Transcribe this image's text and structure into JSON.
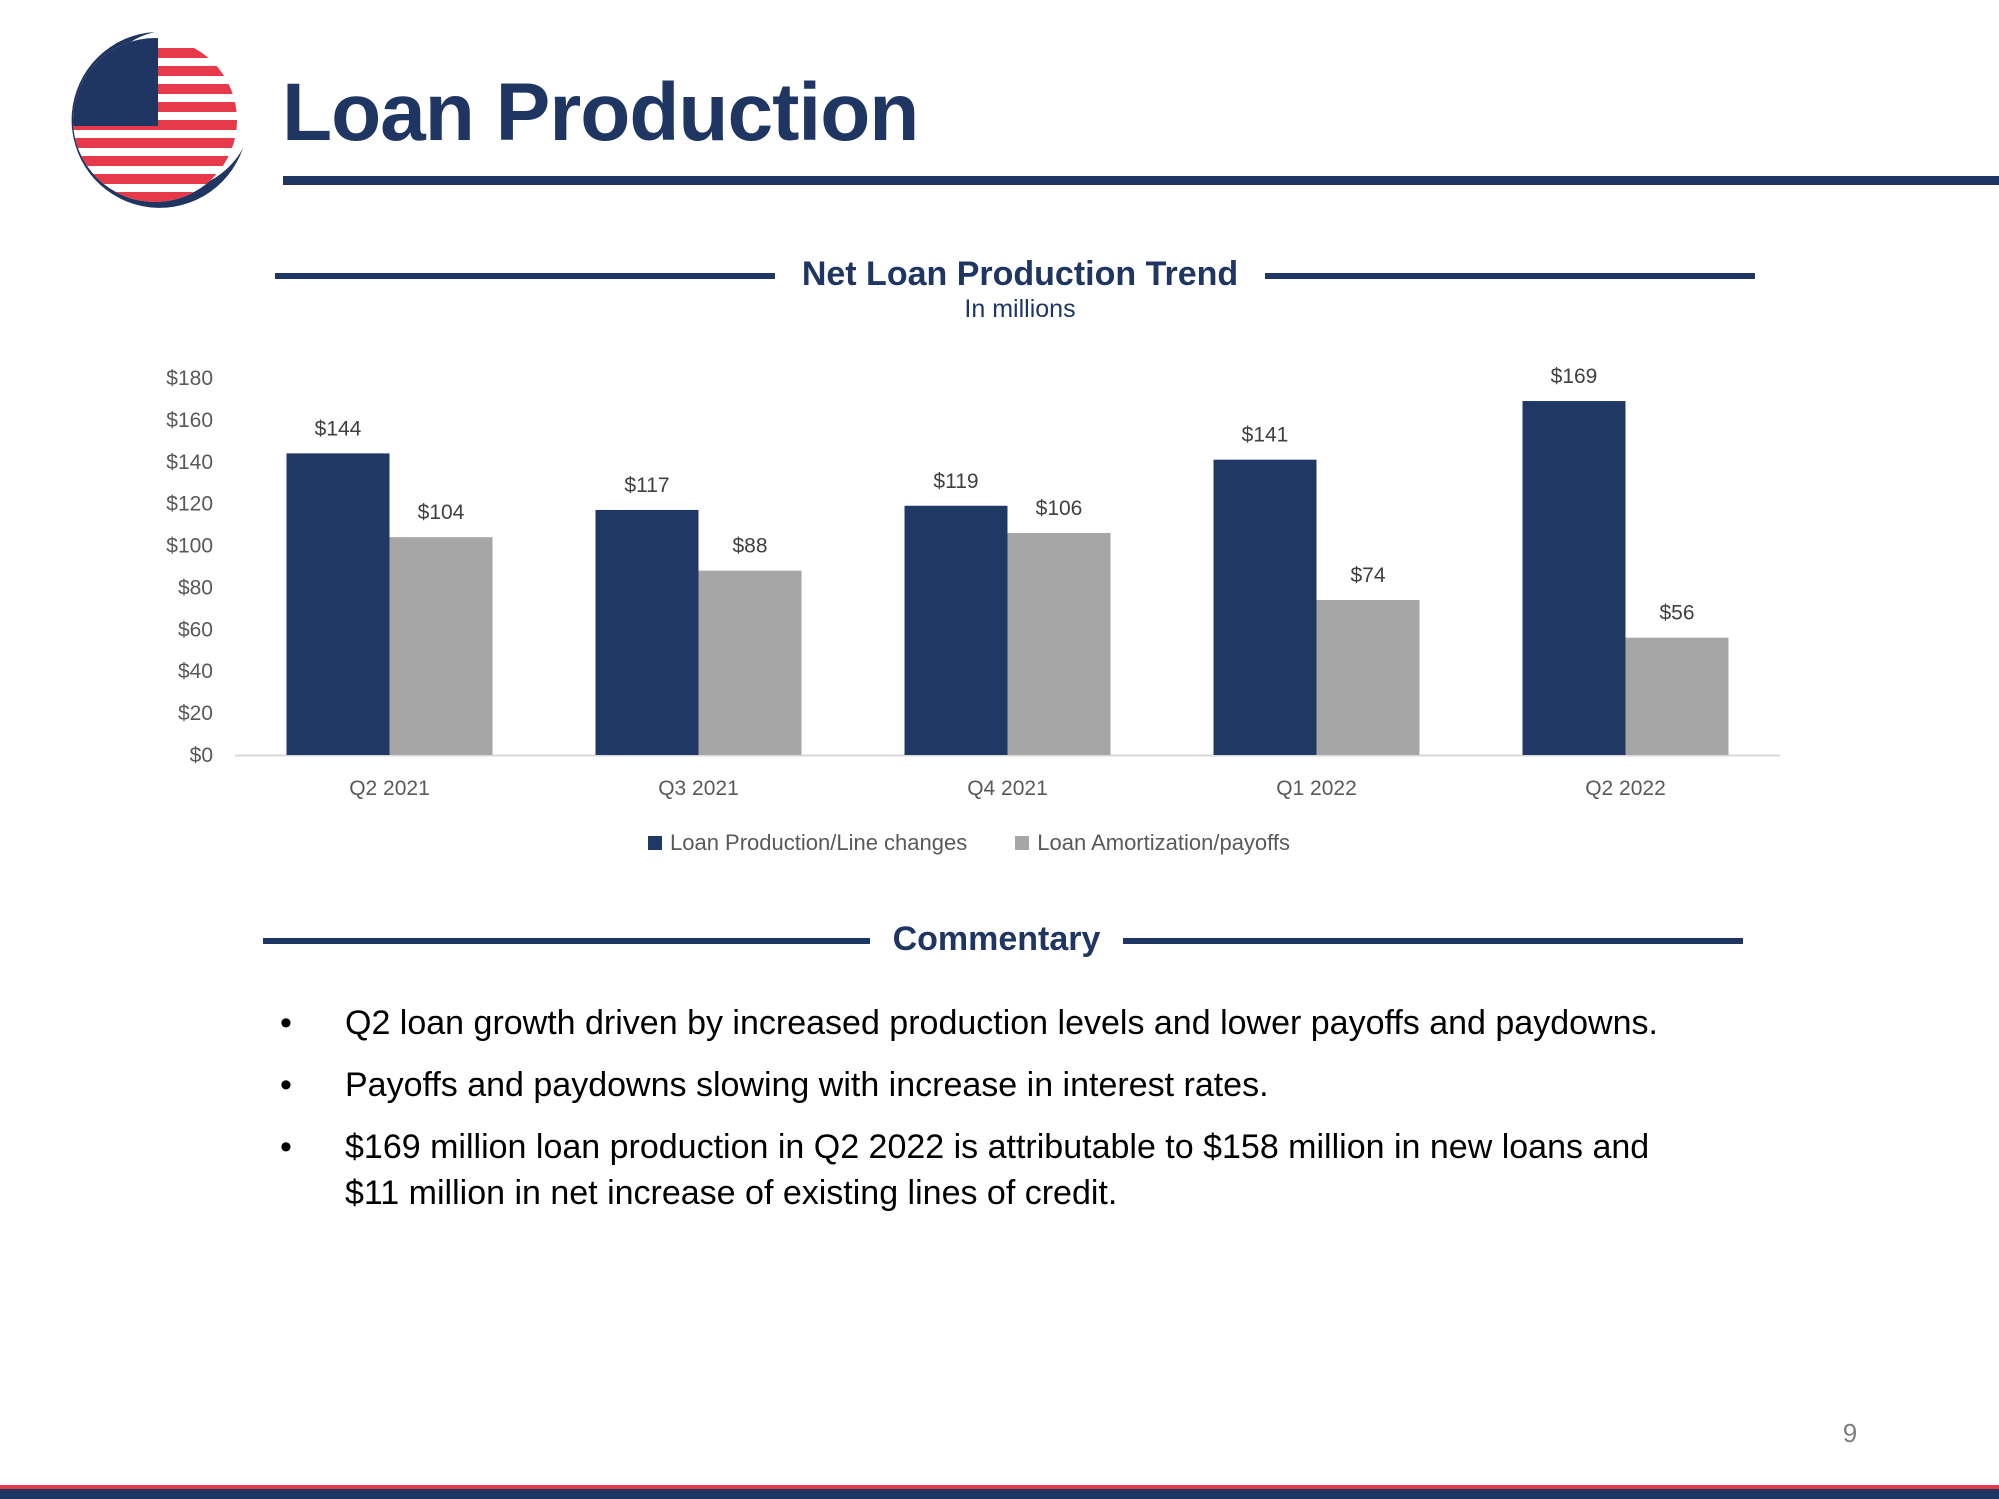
{
  "header": {
    "title": "Loan Production",
    "logo_icon": "globe-flag-logo-icon"
  },
  "chart_section": {
    "title": "Net Loan Production Trend",
    "subtitle": "In millions"
  },
  "chart_data": {
    "type": "bar",
    "categories": [
      "Q2 2021",
      "Q3 2021",
      "Q4 2021",
      "Q1 2022",
      "Q2 2022"
    ],
    "series": [
      {
        "name": "Loan Production/Line changes",
        "values": [
          144,
          117,
          119,
          141,
          169
        ],
        "color": "#203864"
      },
      {
        "name": "Loan Amortization/payoffs",
        "values": [
          104,
          88,
          106,
          74,
          56
        ],
        "color": "#a6a6a6"
      }
    ],
    "ylim": [
      0,
      180
    ],
    "yticks": [
      0,
      20,
      40,
      60,
      80,
      100,
      120,
      140,
      160,
      180
    ],
    "ytick_labels": [
      "$0",
      "$20",
      "$40",
      "$60",
      "$80",
      "$100",
      "$120",
      "$140",
      "$160",
      "$180"
    ],
    "data_labels": [
      [
        "$144",
        "$117",
        "$119",
        "$141",
        "$169"
      ],
      [
        "$104",
        "$88",
        "$106",
        "$74",
        "$56"
      ]
    ],
    "grid": false,
    "legend_position": "bottom"
  },
  "commentary": {
    "title": "Commentary",
    "bullet_glyph": "•",
    "items": [
      "Q2 loan growth driven by increased production levels and lower payoffs and paydowns.",
      "Payoffs and paydowns slowing with increase in interest rates.",
      "$169 million loan production in Q2 2022 is attributable to $158 million in new loans and $11 million in net increase of existing lines of credit."
    ]
  },
  "footer": {
    "page_number": "9"
  }
}
